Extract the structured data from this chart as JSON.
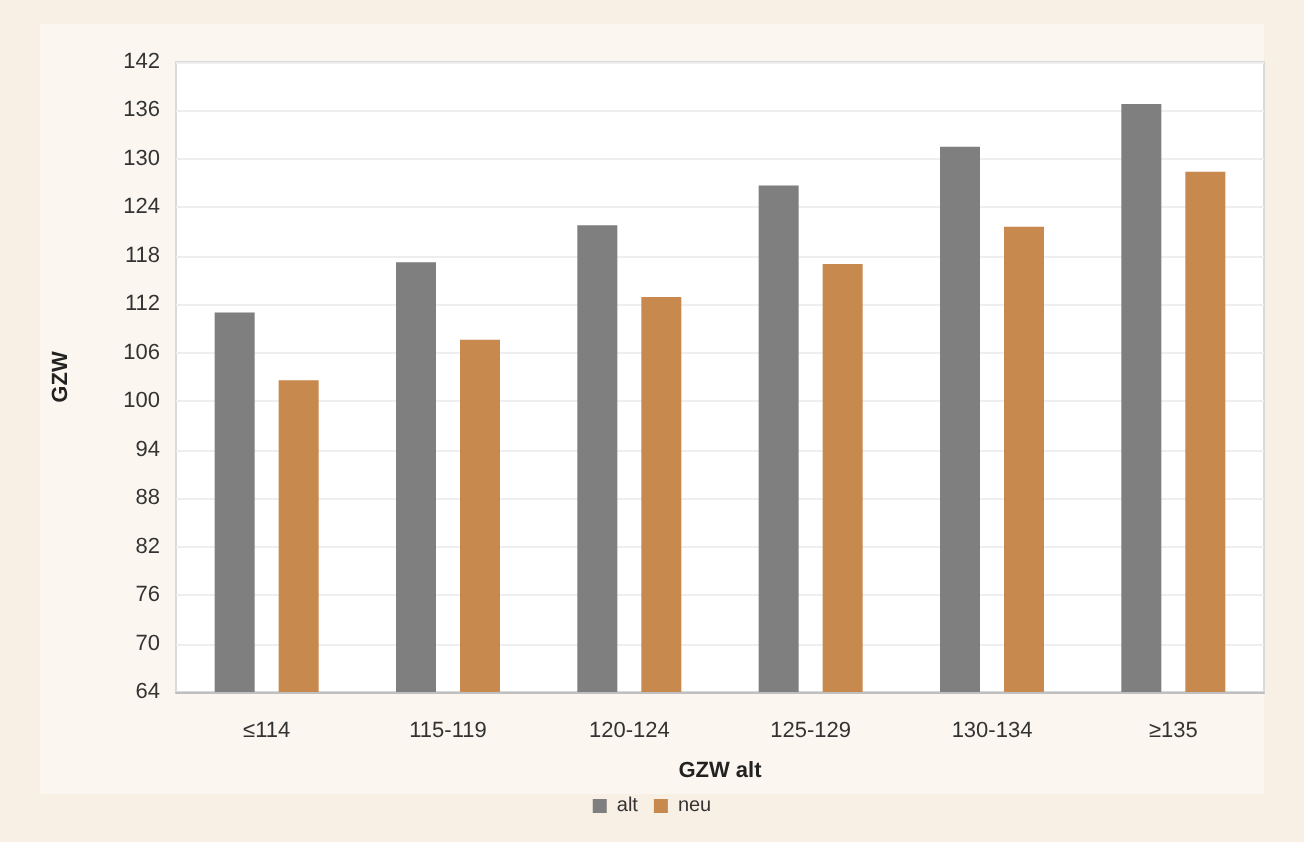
{
  "chart_data": {
    "type": "bar",
    "xlabel": "GZW alt",
    "ylabel": "GZW",
    "categories": [
      "≤114",
      "115-119",
      "120-124",
      "125-129",
      "130-134",
      "≥135"
    ],
    "series": [
      {
        "name": "alt",
        "color": "#7f7f7f",
        "values": [
          111,
          117.2,
          121.8,
          126.7,
          131.5,
          136.8
        ]
      },
      {
        "name": "neu",
        "color": "#c8894e",
        "values": [
          102.6,
          107.6,
          112.9,
          117,
          121.6,
          128.4
        ]
      }
    ],
    "ylim": [
      64,
      142
    ],
    "yticks": [
      64,
      70,
      76,
      82,
      88,
      94,
      100,
      106,
      112,
      118,
      124,
      130,
      136,
      142
    ],
    "grid": "y",
    "legend": "bottom"
  }
}
